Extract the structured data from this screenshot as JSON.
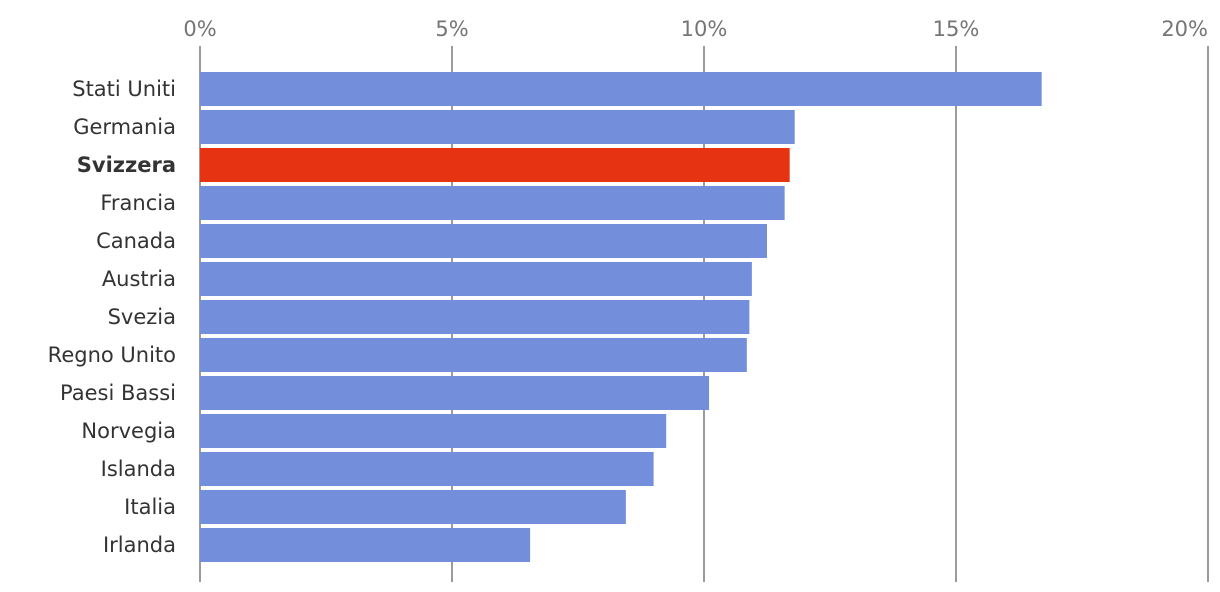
{
  "chart_data": {
    "type": "bar",
    "orientation": "horizontal",
    "title": "",
    "xlabel": "",
    "ylabel": "",
    "categories": [
      "Stati Uniti",
      "Germania",
      "Svizzera",
      "Francia",
      "Canada",
      "Austria",
      "Svezia",
      "Regno Unito",
      "Paesi Bassi",
      "Norvegia",
      "Islanda",
      "Italia",
      "Irlanda"
    ],
    "values": [
      16.7,
      11.8,
      11.7,
      11.6,
      11.25,
      10.95,
      10.9,
      10.85,
      10.1,
      9.25,
      9.0,
      8.45,
      6.55
    ],
    "xlim": [
      0,
      20
    ],
    "ticks": [
      0,
      5,
      10,
      15,
      20
    ],
    "tick_labels": [
      "0%",
      "5%",
      "10%",
      "15%",
      "20%"
    ],
    "highlight": "Svizzera",
    "colors": {
      "bar": "#738edb",
      "highlight": "#e63312",
      "grid": "#7a7a7a"
    },
    "grid": true,
    "legend": "none"
  }
}
